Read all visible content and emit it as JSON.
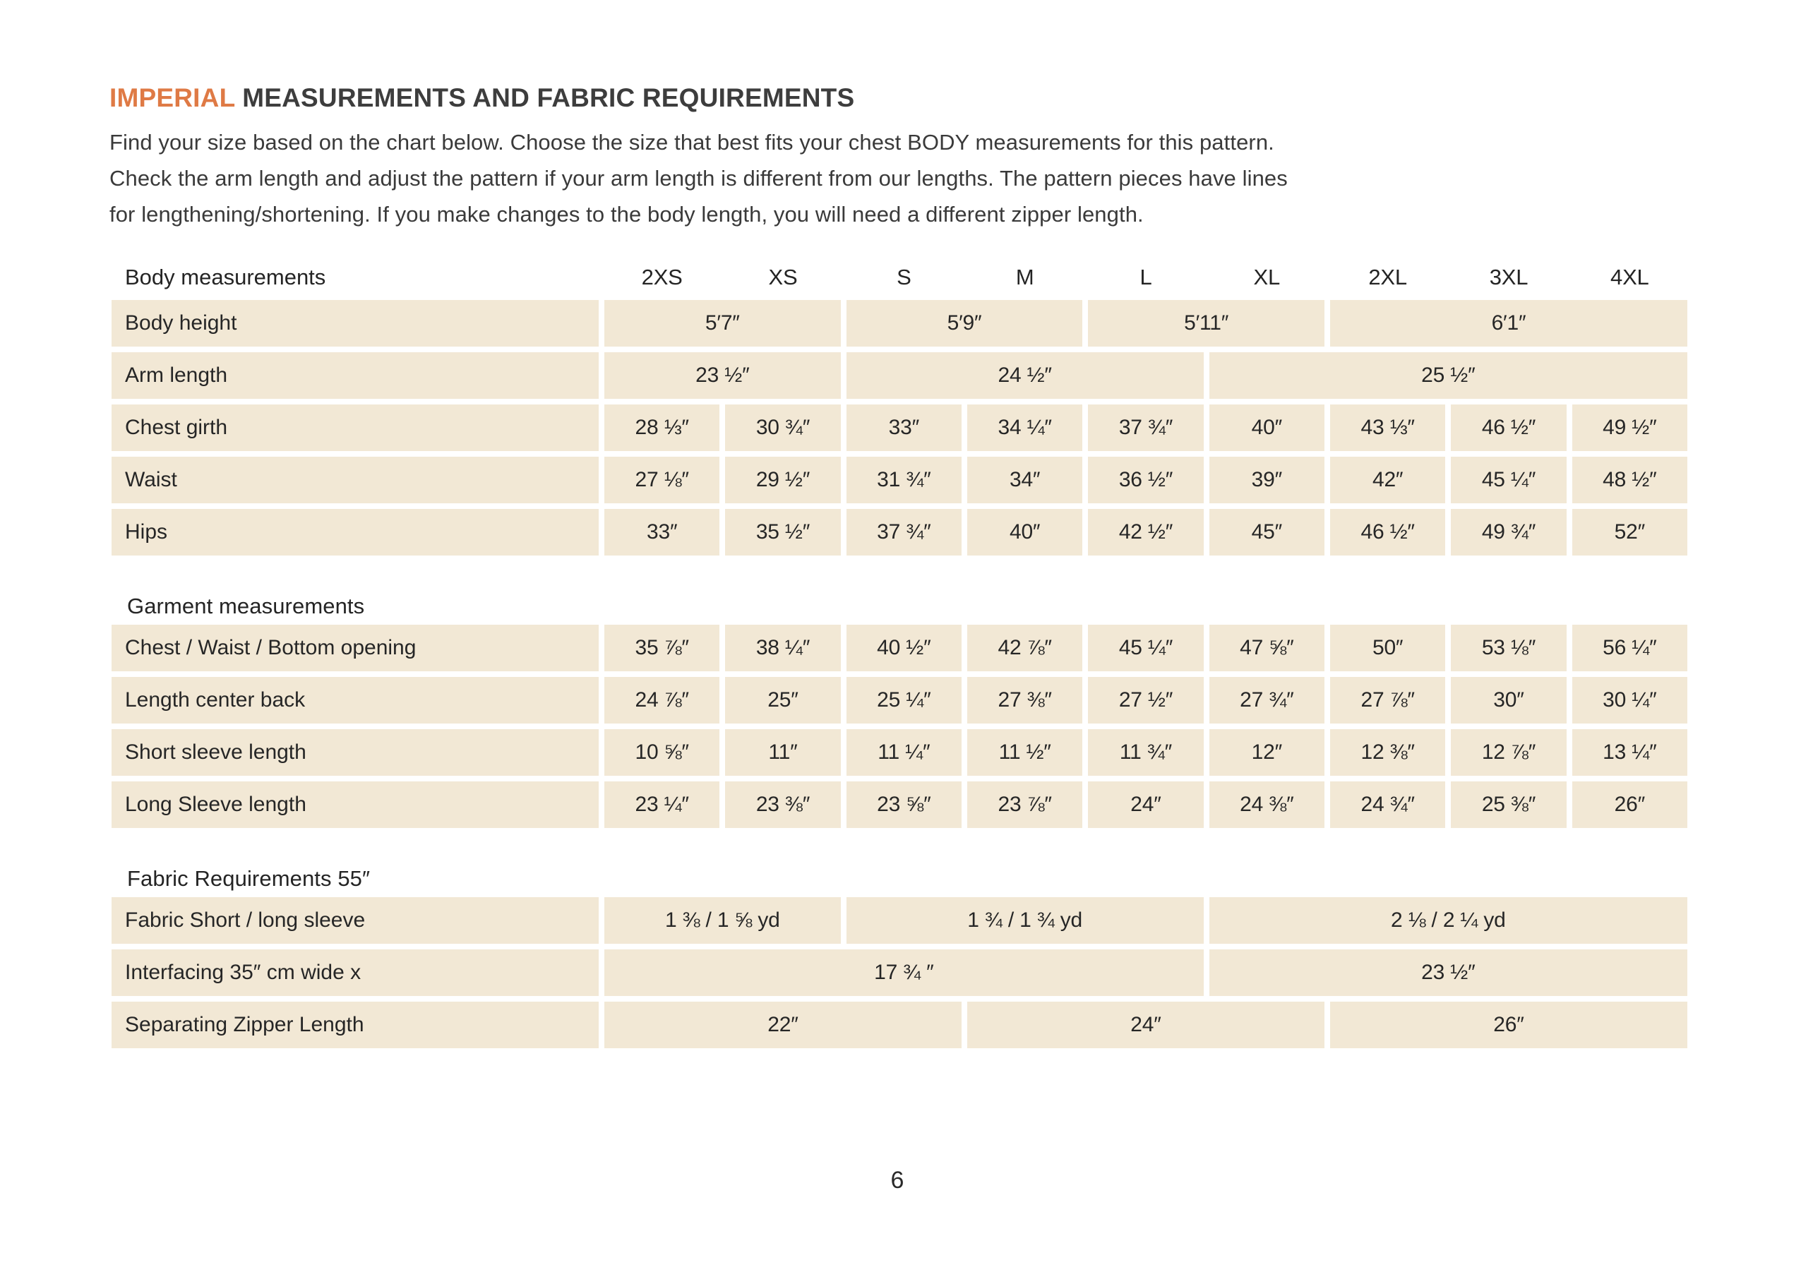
{
  "title": {
    "highlight": "IMPERIAL",
    "rest": " MEASUREMENTS AND FABRIC REQUIREMENTS"
  },
  "accent_color": "#df7a45",
  "cell_color": "#f2e8d5",
  "intro": {
    "lines": [
      "Find your size based on the chart below. Choose the size that best fits your chest BODY measurements for this pattern.",
      "Check the arm length and adjust the pattern if your arm length is different from our lengths. The pattern pieces have lines",
      "for lengthening/shortening. If you make changes to the body length, you will need a different zipper length."
    ]
  },
  "table": {
    "header": {
      "label": "Body measurements",
      "sizes": [
        "2XS",
        "XS",
        "S",
        "M",
        "L",
        "XL",
        "2XL",
        "3XL",
        "4XL"
      ]
    },
    "sections": [
      {
        "heading": "",
        "rows": [
          {
            "label": "Body height",
            "cells": [
              {
                "text": "5′7″",
                "span": 2
              },
              {
                "text": "5′9″",
                "span": 2
              },
              {
                "text": "5′11″",
                "span": 2
              },
              {
                "text": "6′1″",
                "span": 3
              }
            ]
          },
          {
            "label": "Arm length",
            "cells": [
              {
                "text": "23 ½″",
                "span": 2
              },
              {
                "text": "24 ½″",
                "span": 3
              },
              {
                "text": "25 ½″",
                "span": 4
              }
            ]
          },
          {
            "label": "Chest girth",
            "cells": [
              {
                "text": "28 ⅓″",
                "span": 1
              },
              {
                "text": "30 ¾″",
                "span": 1
              },
              {
                "text": "33″",
                "span": 1
              },
              {
                "text": "34 ¼″",
                "span": 1
              },
              {
                "text": "37 ¾″",
                "span": 1
              },
              {
                "text": "40″",
                "span": 1
              },
              {
                "text": "43 ⅓″",
                "span": 1
              },
              {
                "text": "46 ½″",
                "span": 1
              },
              {
                "text": "49 ½″",
                "span": 1
              }
            ]
          },
          {
            "label": "Waist",
            "cells": [
              {
                "text": "27 ⅛″",
                "span": 1
              },
              {
                "text": "29 ½″",
                "span": 1
              },
              {
                "text": "31 ¾″",
                "span": 1
              },
              {
                "text": "34″",
                "span": 1
              },
              {
                "text": "36 ½″",
                "span": 1
              },
              {
                "text": "39″",
                "span": 1
              },
              {
                "text": "42″",
                "span": 1
              },
              {
                "text": "45 ¼″",
                "span": 1
              },
              {
                "text": "48 ½″",
                "span": 1
              }
            ]
          },
          {
            "label": "Hips",
            "cells": [
              {
                "text": "33″",
                "span": 1
              },
              {
                "text": "35 ½″",
                "span": 1
              },
              {
                "text": "37 ¾″",
                "span": 1
              },
              {
                "text": "40″",
                "span": 1
              },
              {
                "text": "42 ½″",
                "span": 1
              },
              {
                "text": "45″",
                "span": 1
              },
              {
                "text": "46 ½″",
                "span": 1
              },
              {
                "text": "49 ¾″",
                "span": 1
              },
              {
                "text": "52″",
                "span": 1
              }
            ]
          }
        ]
      },
      {
        "heading": "Garment measurements",
        "rows": [
          {
            "label": "Chest / Waist / Bottom opening",
            "cells": [
              {
                "text": "35 ⅞″",
                "span": 1
              },
              {
                "text": "38 ¼″",
                "span": 1
              },
              {
                "text": "40 ½″",
                "span": 1
              },
              {
                "text": "42 ⅞″",
                "span": 1
              },
              {
                "text": "45 ¼″",
                "span": 1
              },
              {
                "text": "47 ⅝″",
                "span": 1
              },
              {
                "text": "50″",
                "span": 1
              },
              {
                "text": "53 ⅛″",
                "span": 1
              },
              {
                "text": "56 ¼″",
                "span": 1
              }
            ]
          },
          {
            "label": "Length center back",
            "cells": [
              {
                "text": "24 ⅞″",
                "span": 1
              },
              {
                "text": "25″",
                "span": 1
              },
              {
                "text": "25 ¼″",
                "span": 1
              },
              {
                "text": "27 ⅜″",
                "span": 1
              },
              {
                "text": "27 ½″",
                "span": 1
              },
              {
                "text": "27 ¾″",
                "span": 1
              },
              {
                "text": "27 ⅞″",
                "span": 1
              },
              {
                "text": "30″",
                "span": 1
              },
              {
                "text": "30 ¼″",
                "span": 1
              }
            ]
          },
          {
            "label": "Short sleeve length",
            "cells": [
              {
                "text": "10 ⅝″",
                "span": 1
              },
              {
                "text": "11″",
                "span": 1
              },
              {
                "text": "11 ¼″",
                "span": 1
              },
              {
                "text": "11 ½″",
                "span": 1
              },
              {
                "text": "11 ¾″",
                "span": 1
              },
              {
                "text": "12″",
                "span": 1
              },
              {
                "text": "12 ⅜″",
                "span": 1
              },
              {
                "text": "12 ⅞″",
                "span": 1
              },
              {
                "text": "13 ¼″",
                "span": 1
              }
            ]
          },
          {
            "label": "Long Sleeve length",
            "cells": [
              {
                "text": "23 ¼″",
                "span": 1
              },
              {
                "text": "23 ⅜″",
                "span": 1
              },
              {
                "text": "23 ⅝″",
                "span": 1
              },
              {
                "text": "23 ⅞″",
                "span": 1
              },
              {
                "text": "24″",
                "span": 1
              },
              {
                "text": "24 ⅜″",
                "span": 1
              },
              {
                "text": "24 ¾″",
                "span": 1
              },
              {
                "text": "25 ⅜″",
                "span": 1
              },
              {
                "text": "26″",
                "span": 1
              }
            ]
          }
        ]
      },
      {
        "heading": "Fabric Requirements 55″",
        "rows": [
          {
            "label": "Fabric Short / long sleeve",
            "cells": [
              {
                "text": "1 ⅜ / 1 ⅝ yd",
                "span": 2
              },
              {
                "text": "1 ¾ / 1 ¾ yd",
                "span": 3
              },
              {
                "text": "2 ⅛ / 2 ¼ yd",
                "span": 4
              }
            ]
          },
          {
            "label": "Interfacing  35″ cm wide x",
            "cells": [
              {
                "text": "17 ¾ ″",
                "span": 5
              },
              {
                "text": "23 ½″",
                "span": 4
              }
            ]
          },
          {
            "label": "Separating Zipper Length",
            "cells": [
              {
                "text": "22″",
                "span": 3
              },
              {
                "text": "24″",
                "span": 3
              },
              {
                "text": "26″",
                "span": 3
              }
            ]
          }
        ]
      }
    ]
  },
  "page_number": "6"
}
